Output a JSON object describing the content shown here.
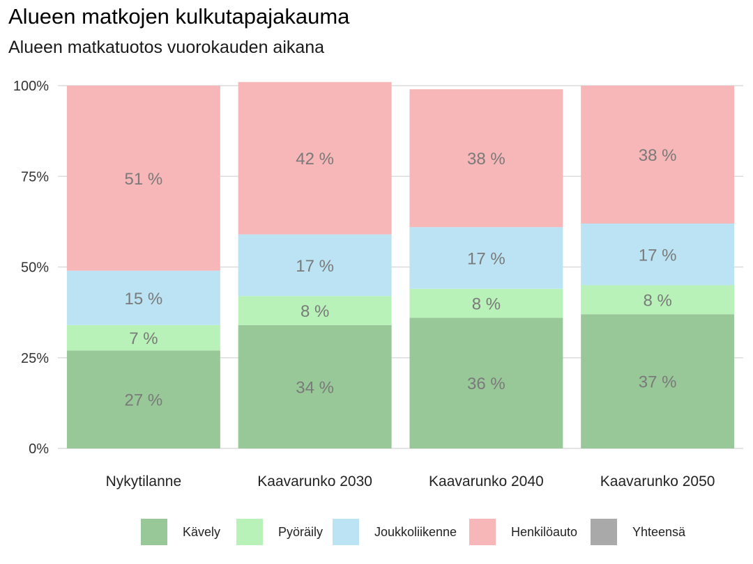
{
  "header": {
    "title": "Alueen matkojen kulkutapajakauma",
    "subtitle": "Alueen matkatuotos vuorokauden aikana"
  },
  "chart_data": {
    "type": "bar",
    "stacked": true,
    "title": "Alueen matkojen kulkutapajakauma",
    "subtitle": "Alueen matkatuotos vuorokauden aikana",
    "xlabel": "",
    "ylabel": "",
    "ylim": [
      0,
      1
    ],
    "y_ticks": [
      "0%",
      "25%",
      "50%",
      "75%",
      "100%"
    ],
    "grid": true,
    "legend_position": "bottom",
    "categories": [
      "Nykytilanne",
      "Kaavarunko 2030",
      "Kaavarunko 2040",
      "Kaavarunko 2050"
    ],
    "series": [
      {
        "name": "Kävely",
        "color": "#98c898",
        "values": [
          0.27,
          0.34,
          0.36,
          0.37
        ],
        "labels": [
          "27 %",
          "34 %",
          "36 %",
          "37 %"
        ]
      },
      {
        "name": "Pyöräily",
        "color": "#b8f2b8",
        "values": [
          0.07,
          0.08,
          0.08,
          0.08
        ],
        "labels": [
          "7 %",
          "8 %",
          "8 %",
          "8 %"
        ]
      },
      {
        "name": "Joukkoliikenne",
        "color": "#bbe3f4",
        "values": [
          0.15,
          0.17,
          0.17,
          0.17
        ],
        "labels": [
          "15 %",
          "17 %",
          "17 %",
          "17 %"
        ]
      },
      {
        "name": "Henkilöauto",
        "color": "#f7b6b8",
        "values": [
          0.51,
          0.42,
          0.38,
          0.38
        ],
        "labels": [
          "51 %",
          "42 %",
          "38 %",
          "38 %"
        ]
      },
      {
        "name": "Yhteensä",
        "color": "#a9a9a9",
        "values": [
          0,
          0,
          0,
          0
        ],
        "labels": []
      }
    ]
  }
}
